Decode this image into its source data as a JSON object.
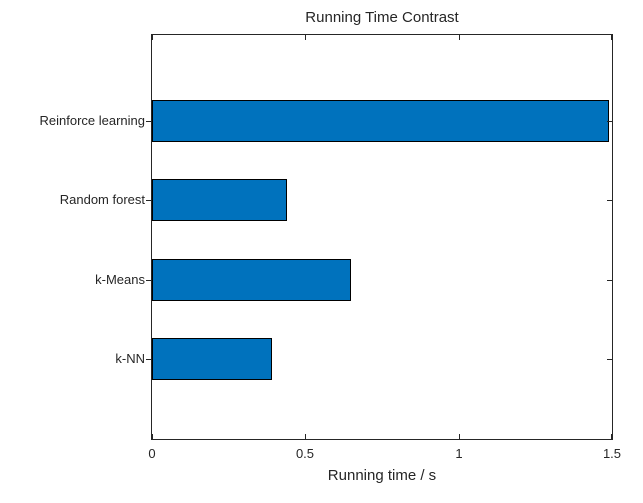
{
  "chart_data": {
    "type": "bar",
    "orientation": "horizontal",
    "title": "Running Time Contrast",
    "xlabel": "Running time / s",
    "ylabel": "",
    "categories": [
      "Reinforce learning",
      "Random forest",
      "k-Means",
      "k-NN"
    ],
    "values": [
      1.49,
      0.44,
      0.65,
      0.39
    ],
    "unit": "s",
    "xlim": [
      0,
      1.5
    ],
    "xticks": [
      0,
      0.5,
      1,
      1.5
    ],
    "xtick_labels": [
      "0",
      "0.5",
      "1",
      "1.5"
    ],
    "grid": false,
    "legend_visible": false,
    "colors": {
      "bar_fill": "#0072BD",
      "bar_edge": "#000000",
      "axis": "#262626",
      "text": "#262626",
      "background": "#ffffff"
    }
  }
}
